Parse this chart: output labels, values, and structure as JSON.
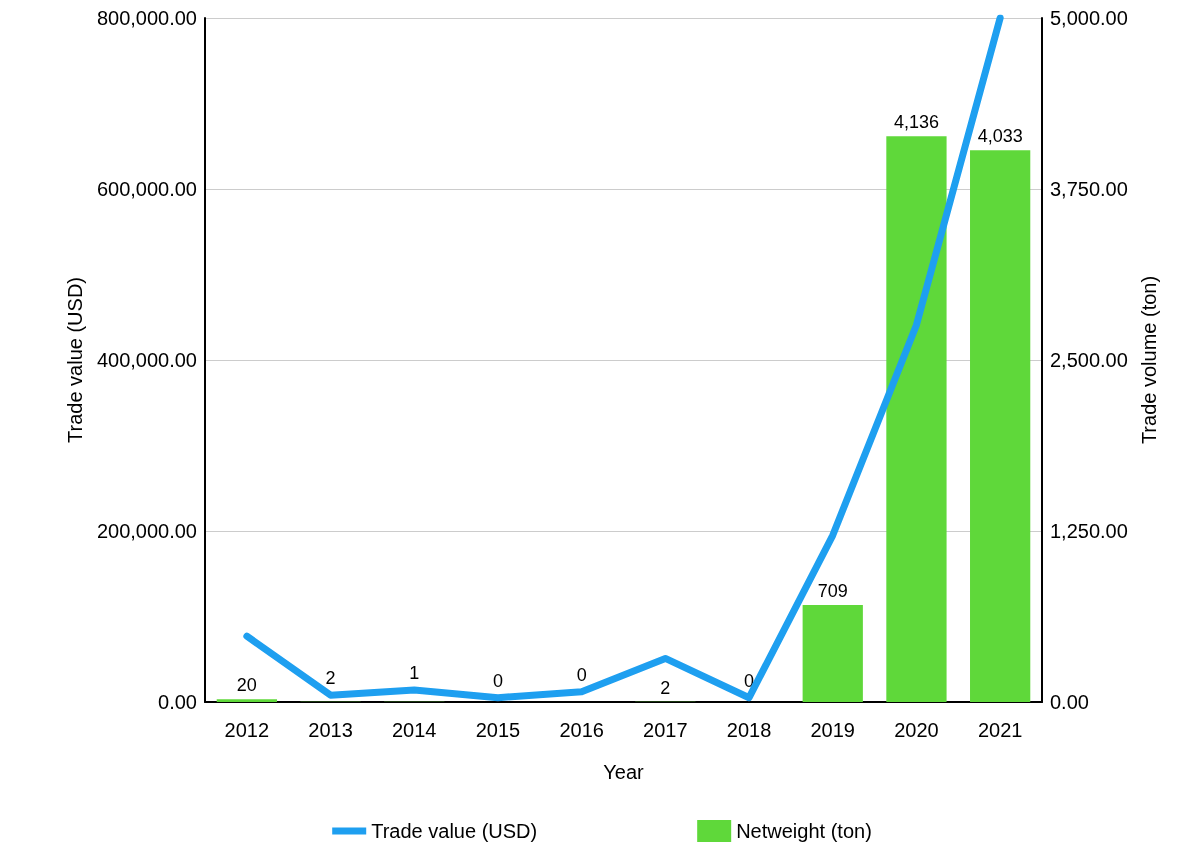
{
  "chart_data": {
    "type": "bar",
    "xlabel": "Year",
    "ylabel": "Trade value (USD)",
    "y2label": "Trade volume (ton)",
    "categories": [
      "2012",
      "2013",
      "2014",
      "2015",
      "2016",
      "2017",
      "2018",
      "2019",
      "2020",
      "2021"
    ],
    "series": [
      {
        "name": "Trade value (USD)",
        "type": "line",
        "color": "#1e9ff0",
        "values": [
          77000,
          8000,
          14000,
          5000,
          12000,
          51000,
          5000,
          195000,
          441000,
          800000
        ]
      },
      {
        "name": "Netweight (ton)",
        "axis": "y2",
        "color": "#5fd83a",
        "values": [
          20,
          2,
          1,
          0,
          0,
          2,
          0,
          709,
          4136,
          4033
        ],
        "value_labels": [
          "20",
          "2",
          "1",
          "0",
          "0",
          "2",
          "0",
          "709",
          "4,136",
          "4,033"
        ]
      }
    ],
    "ylim": [
      0,
      800000
    ],
    "yticks": [
      {
        "value": 0,
        "label": "0.00"
      },
      {
        "value": 200000,
        "label": "200,000.00"
      },
      {
        "value": 400000,
        "label": "400,000.00"
      },
      {
        "value": 600000,
        "label": "600,000.00"
      },
      {
        "value": 800000,
        "label": "800,000.00"
      }
    ],
    "y2lim": [
      0,
      5000
    ],
    "y2ticks": [
      {
        "value": 0,
        "label": "0.00"
      },
      {
        "value": 1250,
        "label": "1,250.00"
      },
      {
        "value": 2500,
        "label": "2,500.00"
      },
      {
        "value": 3750,
        "label": "3,750.00"
      },
      {
        "value": 5000,
        "label": "5,000.00"
      }
    ],
    "grid": "y",
    "legend": "bottom",
    "marker": "none",
    "line_style": "solid"
  }
}
